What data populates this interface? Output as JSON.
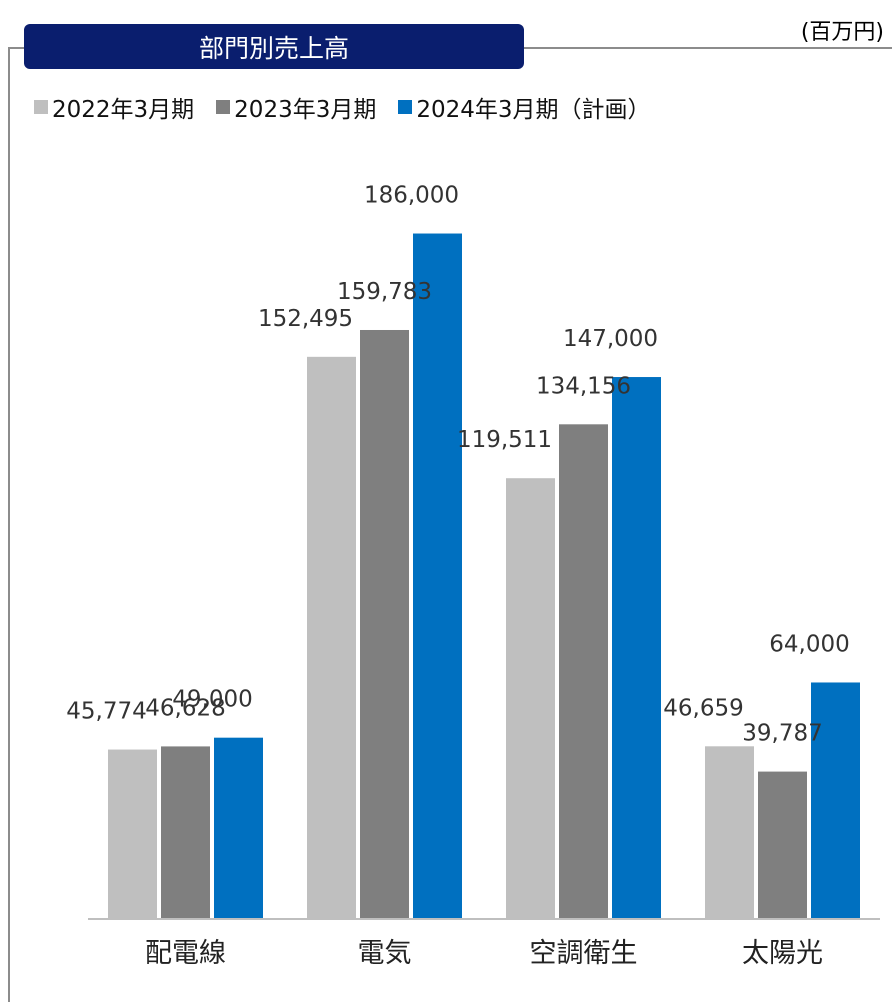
{
  "header": {
    "title": "部門別売上高",
    "unit": "(百万円)"
  },
  "colors": {
    "title_bg": "#0a1e6e",
    "frame": "#8c8c8c"
  },
  "chart_data": {
    "type": "bar",
    "title": "部門別売上高",
    "unit": "(百万円)",
    "categories": [
      "配電線",
      "電気",
      "空調衛生",
      "太陽光"
    ],
    "series": [
      {
        "name": "2022年3月期",
        "color": "#bfbfbf",
        "values": [
          45774,
          152495,
          119511,
          46659
        ],
        "labels": [
          "45,774",
          "152,495",
          "119,511",
          "46,659"
        ]
      },
      {
        "name": "2023年3月期",
        "color": "#7f7f7f",
        "values": [
          46628,
          159783,
          134156,
          39787
        ],
        "labels": [
          "46,628",
          "159,783",
          "134,156",
          "39,787"
        ]
      },
      {
        "name": "2024年3月期（計画）",
        "color": "#0070c0",
        "values": [
          49000,
          186000,
          147000,
          64000
        ],
        "labels": [
          "49,000",
          "186,000",
          "147,000",
          "64,000"
        ]
      }
    ],
    "ylim": [
      0,
      200000
    ],
    "legend": "top-left",
    "grid": false
  }
}
